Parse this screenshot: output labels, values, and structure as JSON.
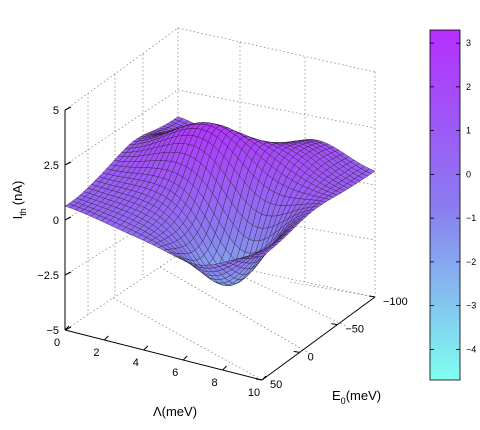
{
  "chart_data": {
    "type": "surface",
    "zlabel": "I_th (nA)",
    "zlabel_main": "I",
    "zlabel_sub": "th",
    "zlabel_unit": "(nA)",
    "xlabel": "Λ(meV)",
    "ylabel": "E_0(meV)",
    "ylabel_main": "E",
    "ylabel_sub": "0",
    "ylabel_unit": "(meV)",
    "xlim": [
      0,
      10
    ],
    "ylim": [
      -100,
      50
    ],
    "zlim": [
      -5,
      5
    ],
    "clim": [
      -4.7,
      3.3
    ],
    "x_ticks": [
      "0",
      "2",
      "4",
      "6",
      "8",
      "10"
    ],
    "y_ticks": [
      "−100",
      "−50",
      "0",
      "50"
    ],
    "z_ticks": [
      "5",
      "2.5",
      "0",
      "−2.5",
      "−5"
    ],
    "colorbar_ticks": [
      "3",
      "2",
      "1",
      "0",
      "−1",
      "−2",
      "−3",
      "−4"
    ],
    "colormap": [
      "#7ffff0",
      "#8a7bf0",
      "#b52fff"
    ],
    "grid": true,
    "samples": {
      "Lambda_meV": [
        0,
        5,
        10
      ],
      "E0_meV": [
        50,
        0,
        -100
      ],
      "I_th_nA": [
        [
          1.3,
          3.3,
          2.0
        ],
        [
          -2.3,
          -1.8,
          -0.5
        ],
        [
          0.5,
          0.4,
          0.3
        ]
      ]
    }
  }
}
